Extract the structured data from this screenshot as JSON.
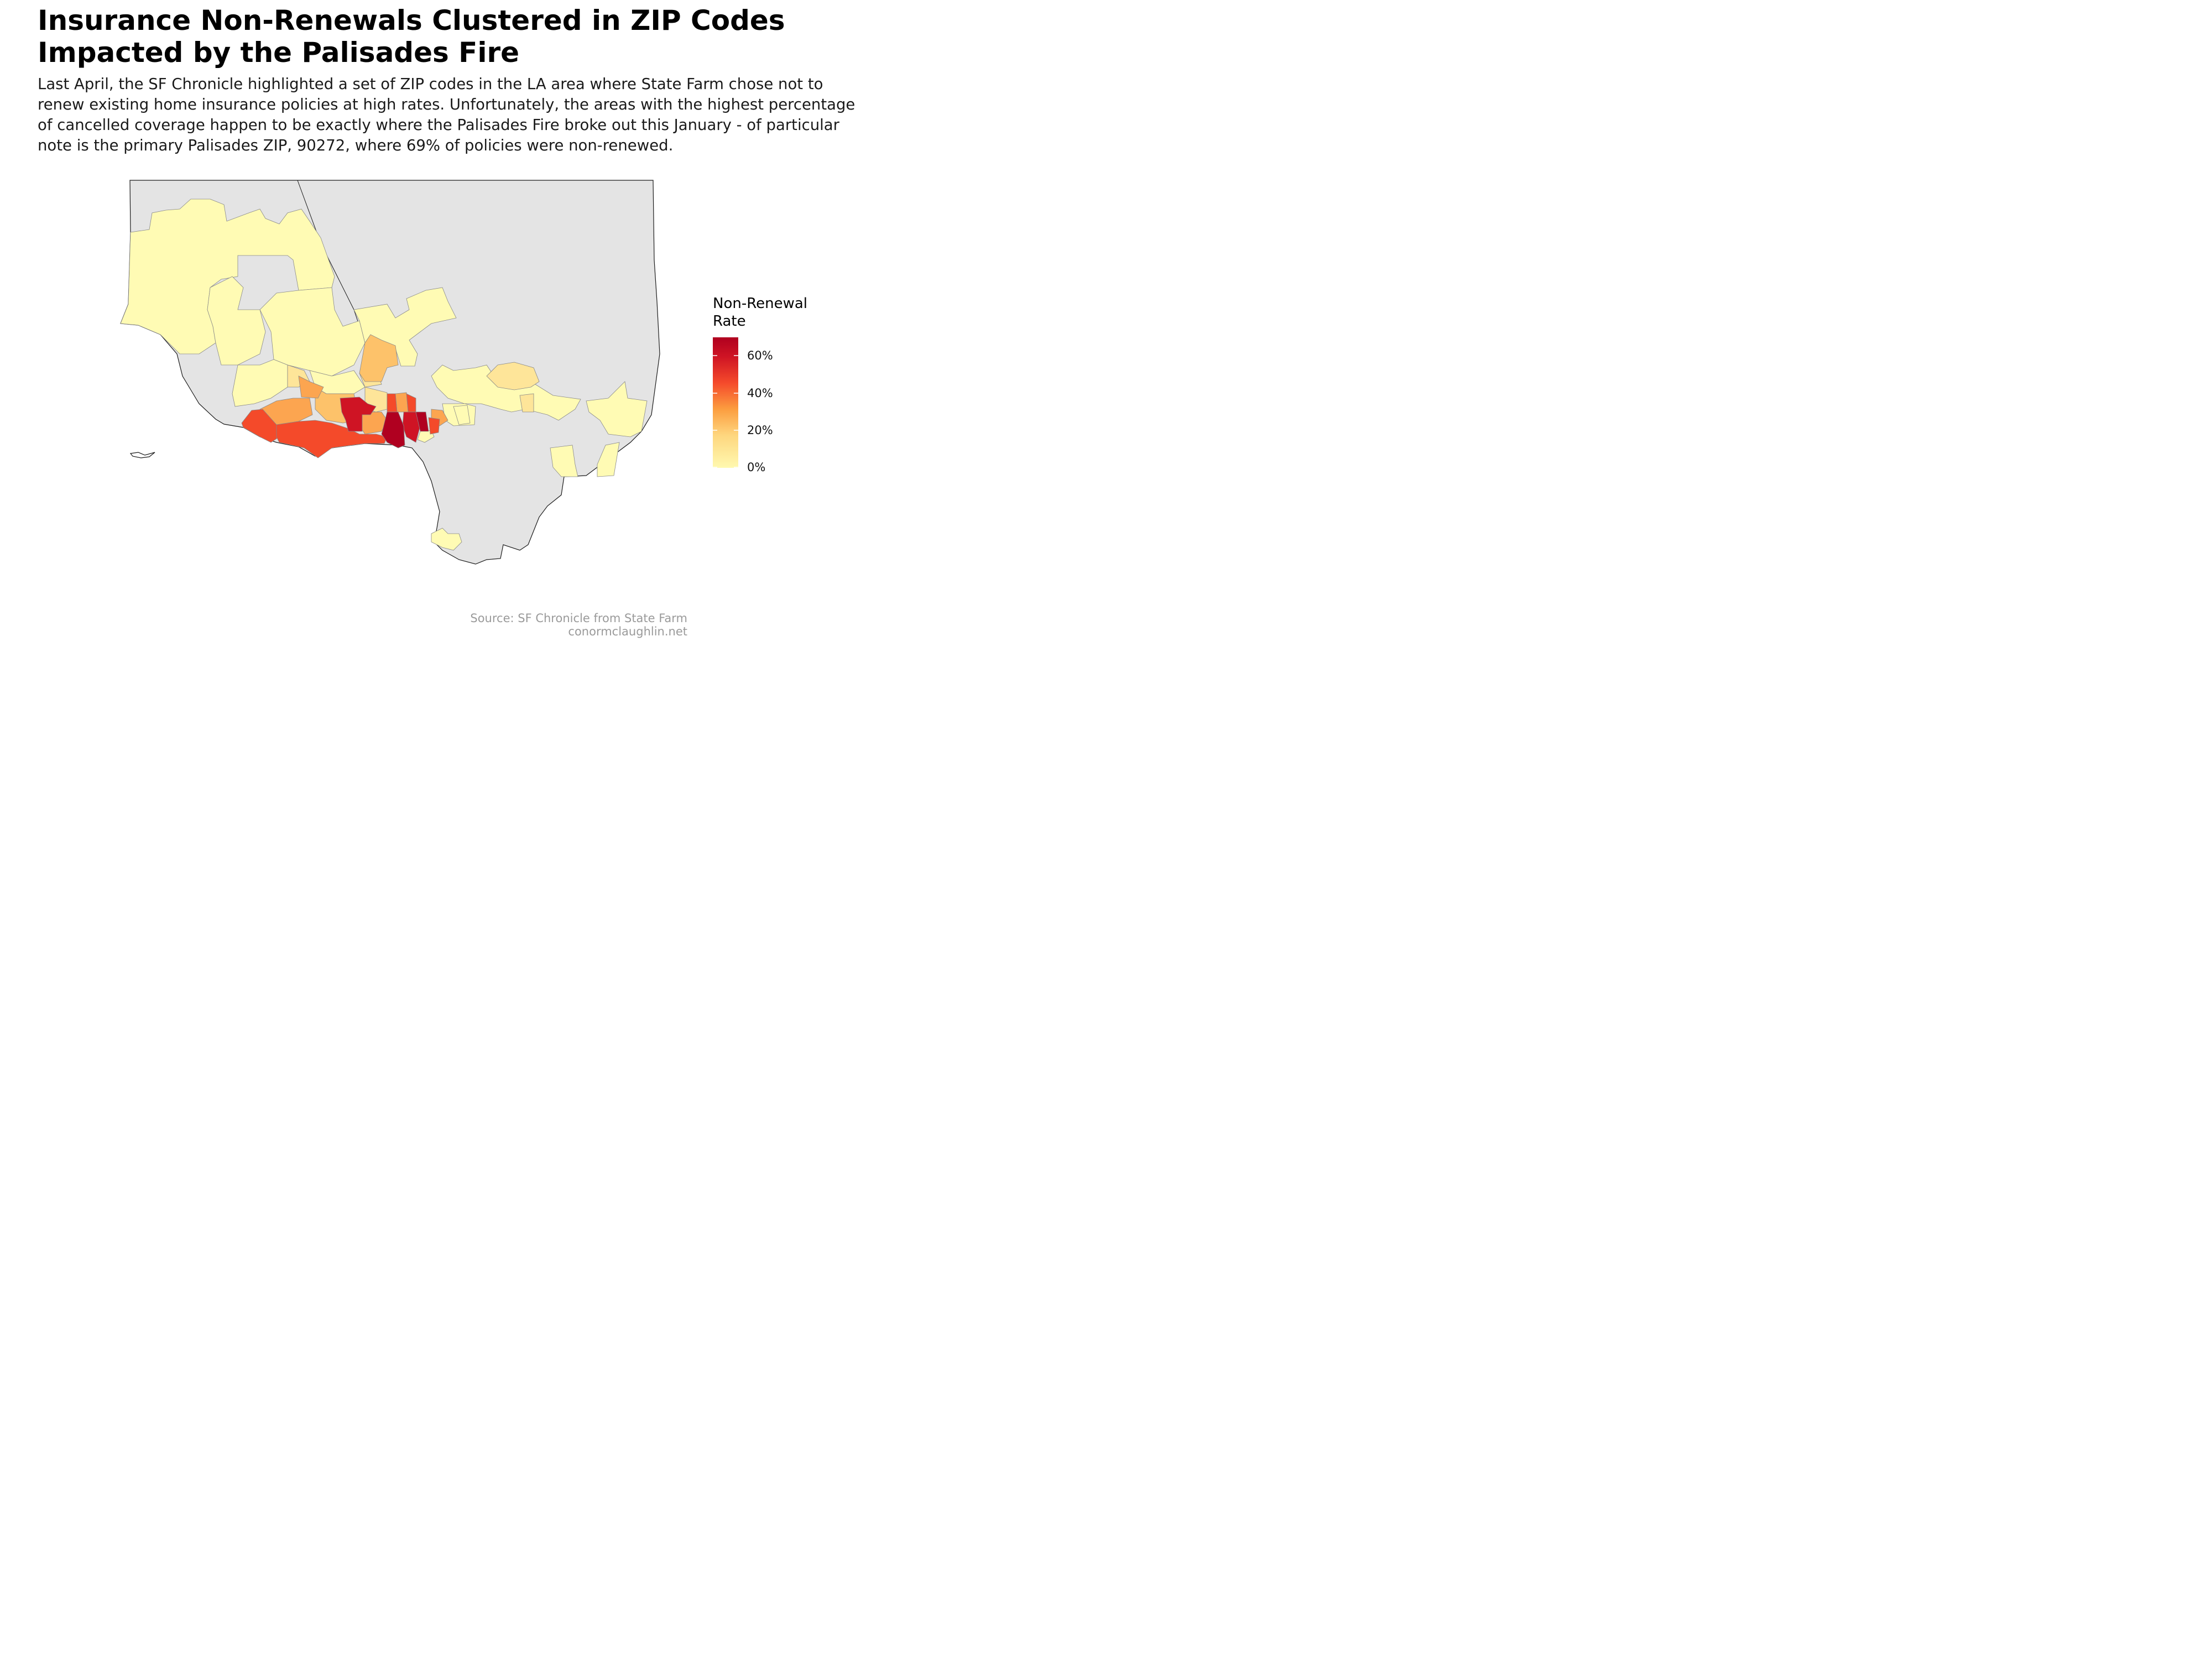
{
  "title": "Insurance Non-Renewals Clustered in ZIP Codes\nImpacted by the Palisades Fire",
  "subtitle": "Last April, the SF Chronicle highlighted a set of ZIP codes in the LA area where State Farm chose not to renew existing home insurance policies at high rates. Unfortunately, the areas with the highest percentage of cancelled coverage happen to be exactly where the Palisades Fire broke out this January - of particular note is the primary Palisades ZIP, 90272, where 69% of policies were non-renewed.",
  "legend": {
    "title": "Non-Renewal\nRate",
    "labels": [
      "60%",
      "40%",
      "20%",
      "0%"
    ],
    "colors": [
      "#fff9b0",
      "#ffd480",
      "#fc9d3f",
      "#f54a2b",
      "#cf1424",
      "#b0001f"
    ]
  },
  "source": {
    "line1": "Source: SF Chronicle from State Farm",
    "line2": "conormclaughlin.net"
  },
  "colors": {
    "land": "#e4e4e4",
    "outline": "#1a1a1a",
    "zip_border": "#777777"
  }
}
